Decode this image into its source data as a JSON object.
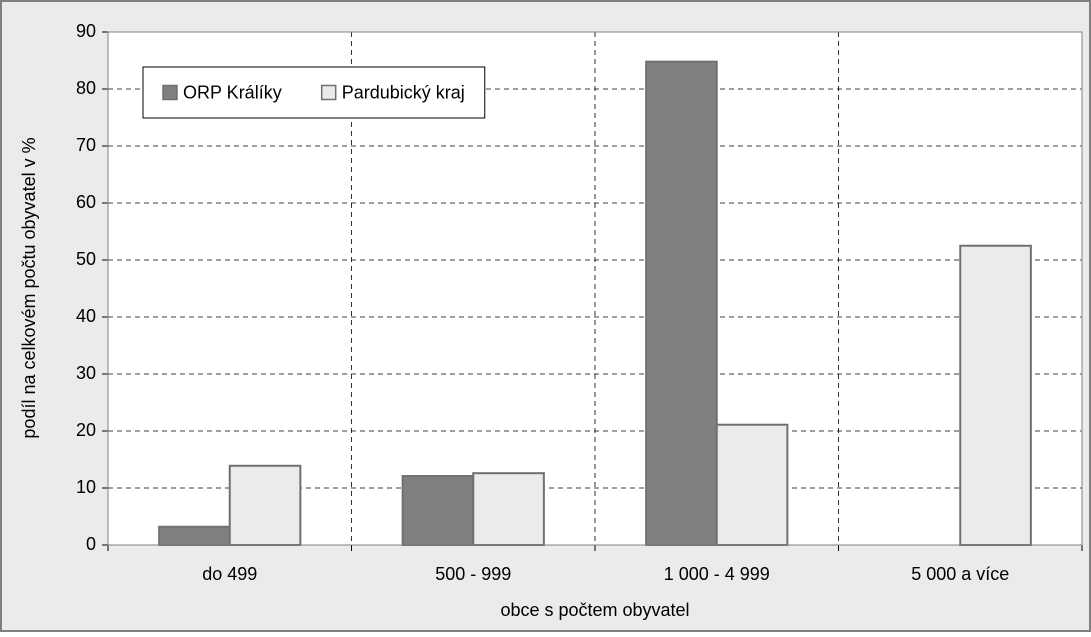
{
  "chart_data": {
    "type": "bar",
    "xlabel": "obce s počtem obyvatel",
    "ylabel": "podíl na celkovém počtu obyvatel v %",
    "categories": [
      "do 499",
      "500 - 999",
      "1 000 - 4 999",
      "5 000 a více"
    ],
    "series": [
      {
        "name": "ORP Králíky",
        "color": "#808080",
        "values": [
          3.2,
          12.1,
          84.8,
          0
        ]
      },
      {
        "name": "Pardubický kraj",
        "color": "#ebebeb",
        "values": [
          13.9,
          12.6,
          21.1,
          52.5
        ]
      }
    ],
    "ylim": [
      0,
      90
    ],
    "yticks": [
      0,
      10,
      20,
      30,
      40,
      50,
      60,
      70,
      80,
      90
    ],
    "grid": true,
    "legend": "upper left"
  }
}
